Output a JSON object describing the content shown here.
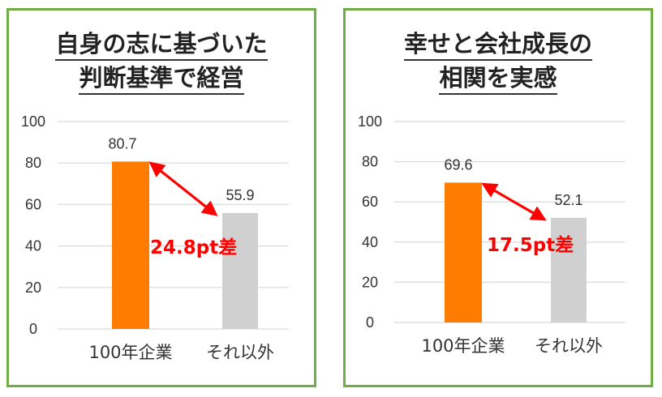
{
  "colors": {
    "border": "#70ad47",
    "bar_primary": "#ff7c00",
    "bar_secondary": "#d0d0d0",
    "gridline": "#d9d9d9",
    "annotation": "#ff0000"
  },
  "chart_data": [
    {
      "type": "bar",
      "title_lines": [
        "自身の志に基づいた",
        "判断基準で経営"
      ],
      "categories": [
        "100年企業",
        "それ以外"
      ],
      "values": [
        80.7,
        55.9
      ],
      "value_labels": [
        "80.7",
        "55.9"
      ],
      "yticks": [
        "0",
        "20",
        "40",
        "60",
        "80",
        "100"
      ],
      "ylim": [
        0,
        100
      ],
      "grid": true,
      "annotation": {
        "text": "24.8pt差",
        "color": "red"
      }
    },
    {
      "type": "bar",
      "title_lines": [
        "幸せと会社成長の",
        "相関を実感"
      ],
      "categories": [
        "100年企業",
        "それ以外"
      ],
      "values": [
        69.6,
        52.1
      ],
      "value_labels": [
        "69.6",
        "52.1"
      ],
      "yticks": [
        "0",
        "20",
        "40",
        "60",
        "80",
        "100"
      ],
      "ylim": [
        0,
        100
      ],
      "grid": true,
      "annotation": {
        "text": "17.5pt差",
        "color": "red"
      }
    }
  ]
}
